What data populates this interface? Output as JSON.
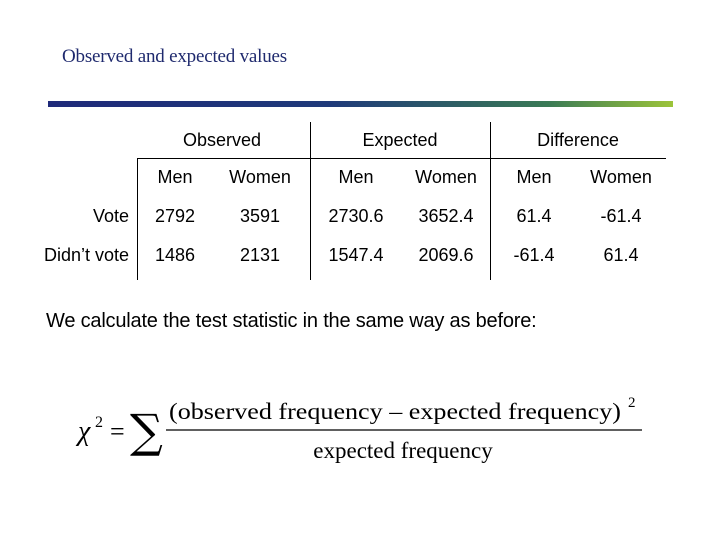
{
  "title": "Observed and expected values",
  "table": {
    "groups": [
      "Observed",
      "Expected",
      "Difference"
    ],
    "subheaders": [
      "Men",
      "Women",
      "Men",
      "Women",
      "Men",
      "Women"
    ],
    "rows": [
      {
        "label": "Vote",
        "values": [
          "2792",
          "3591",
          "2730.6",
          "3652.4",
          "61.4",
          "-61.4"
        ]
      },
      {
        "label": "Didn’t vote",
        "values": [
          "1486",
          "2131",
          "1547.4",
          "2069.6",
          "-61.4",
          "61.4"
        ]
      }
    ]
  },
  "body_text": "We calculate the test statistic in the same way as before:",
  "formula": {
    "lhs": "χ",
    "lhs_exponent": "2",
    "equals": "=",
    "sigma": "∑",
    "numerator": "(observed frequency – expected frequency)",
    "numerator_exponent": "2",
    "denominator": "expected frequency"
  },
  "colors": {
    "title": "#1f2a6e",
    "rule_start": "#1f2a7a",
    "rule_end": "#9cc43a"
  }
}
